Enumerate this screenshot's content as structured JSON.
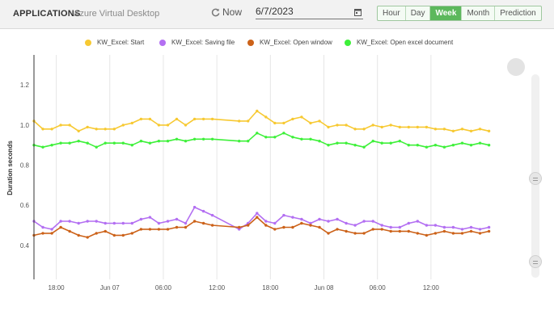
{
  "header": {
    "title": "APPLICATIONS",
    "subtitle": "Azure Virtual Desktop",
    "now_label": "Now",
    "date_value": "6/7/2023",
    "ranges": [
      "Hour",
      "Day",
      "Week",
      "Month",
      "Prediction"
    ],
    "active_range": "Week"
  },
  "colors": {
    "start": "#f7c932",
    "saving": "#b36ff2",
    "open_window": "#cc6219",
    "open_doc": "#3ef03a",
    "active_button": "#5cb85c"
  },
  "chart_data": {
    "type": "line",
    "ylabel": "Duration seconds",
    "ylim": [
      0.23,
      1.35
    ],
    "yticks": [
      0.4,
      0.6,
      0.8,
      1.0,
      1.2
    ],
    "xtick_labels": [
      "18:00",
      "Jun 07",
      "06:00",
      "12:00",
      "18:00",
      "Jun 08",
      "06:00",
      "12:00"
    ],
    "xlim": [
      15.5,
      70.8
    ],
    "xtick_hours": [
      18,
      24,
      30,
      36,
      42,
      48,
      54,
      60
    ],
    "grid": "vertical",
    "legend_position": "top",
    "series": [
      {
        "name": "KW_Excel: Start",
        "x": [
          15.5,
          16.5,
          17.5,
          18.5,
          19.5,
          20.5,
          21.5,
          22.5,
          23.5,
          24.5,
          25.5,
          26.5,
          27.5,
          28.5,
          29.5,
          30.5,
          31.5,
          32.5,
          33.5,
          34.5,
          35.5,
          38.5,
          39.5,
          40.5,
          41.5,
          42.5,
          43.5,
          44.5,
          45.5,
          46.5,
          47.5,
          48.5,
          49.5,
          50.5,
          51.5,
          52.5,
          53.5,
          54.5,
          55.5,
          56.5,
          57.5,
          58.5,
          59.5,
          60.5,
          61.5,
          62.5,
          63.5,
          64.5,
          65.5,
          66.5
        ],
        "y": [
          1.02,
          0.98,
          0.98,
          1.0,
          1.0,
          0.97,
          0.99,
          0.98,
          0.98,
          0.98,
          1.0,
          1.01,
          1.03,
          1.03,
          1.0,
          1.0,
          1.03,
          1.0,
          1.03,
          1.03,
          1.03,
          1.02,
          1.02,
          1.07,
          1.04,
          1.01,
          1.01,
          1.03,
          1.04,
          1.01,
          1.02,
          0.99,
          1.0,
          1.0,
          0.98,
          0.98,
          1.0,
          0.99,
          1.0,
          0.99,
          0.99,
          0.99,
          0.99,
          0.98,
          0.98,
          0.97,
          0.98,
          0.97,
          0.98,
          0.97
        ]
      },
      {
        "name": "KW_Excel: Saving file",
        "x": [
          15.5,
          16.5,
          17.5,
          18.5,
          19.5,
          20.5,
          21.5,
          22.5,
          23.5,
          24.5,
          25.5,
          26.5,
          27.5,
          28.5,
          29.5,
          30.5,
          31.5,
          32.5,
          33.5,
          34.5,
          35.5,
          38.5,
          39.5,
          40.5,
          41.5,
          42.5,
          43.5,
          44.5,
          45.5,
          46.5,
          47.5,
          48.5,
          49.5,
          50.5,
          51.5,
          52.5,
          53.5,
          54.5,
          55.5,
          56.5,
          57.5,
          58.5,
          59.5,
          60.5,
          61.5,
          62.5,
          63.5,
          64.5,
          65.5,
          66.5
        ],
        "y": [
          0.52,
          0.49,
          0.48,
          0.52,
          0.52,
          0.51,
          0.52,
          0.52,
          0.51,
          0.51,
          0.51,
          0.51,
          0.53,
          0.54,
          0.51,
          0.52,
          0.53,
          0.51,
          0.59,
          0.57,
          0.55,
          0.48,
          0.51,
          0.56,
          0.52,
          0.51,
          0.55,
          0.54,
          0.53,
          0.51,
          0.53,
          0.52,
          0.53,
          0.51,
          0.5,
          0.52,
          0.52,
          0.5,
          0.49,
          0.49,
          0.51,
          0.52,
          0.5,
          0.5,
          0.49,
          0.49,
          0.48,
          0.49,
          0.48,
          0.49
        ]
      },
      {
        "name": "KW_Excel: Open window",
        "x": [
          15.5,
          16.5,
          17.5,
          18.5,
          19.5,
          20.5,
          21.5,
          22.5,
          23.5,
          24.5,
          25.5,
          26.5,
          27.5,
          28.5,
          29.5,
          30.5,
          31.5,
          32.5,
          33.5,
          34.5,
          35.5,
          38.5,
          39.5,
          40.5,
          41.5,
          42.5,
          43.5,
          44.5,
          45.5,
          46.5,
          47.5,
          48.5,
          49.5,
          50.5,
          51.5,
          52.5,
          53.5,
          54.5,
          55.5,
          56.5,
          57.5,
          58.5,
          59.5,
          60.5,
          61.5,
          62.5,
          63.5,
          64.5,
          65.5,
          66.5
        ],
        "y": [
          0.45,
          0.46,
          0.46,
          0.49,
          0.47,
          0.45,
          0.44,
          0.46,
          0.47,
          0.45,
          0.45,
          0.46,
          0.48,
          0.48,
          0.48,
          0.48,
          0.49,
          0.49,
          0.52,
          0.51,
          0.5,
          0.49,
          0.5,
          0.54,
          0.5,
          0.48,
          0.49,
          0.49,
          0.51,
          0.5,
          0.49,
          0.46,
          0.48,
          0.47,
          0.46,
          0.46,
          0.48,
          0.48,
          0.47,
          0.47,
          0.47,
          0.46,
          0.45,
          0.46,
          0.47,
          0.46,
          0.46,
          0.47,
          0.46,
          0.47
        ]
      },
      {
        "name": "KW_Excel: Open excel document",
        "x": [
          15.5,
          16.5,
          17.5,
          18.5,
          19.5,
          20.5,
          21.5,
          22.5,
          23.5,
          24.5,
          25.5,
          26.5,
          27.5,
          28.5,
          29.5,
          30.5,
          31.5,
          32.5,
          33.5,
          34.5,
          35.5,
          38.5,
          39.5,
          40.5,
          41.5,
          42.5,
          43.5,
          44.5,
          45.5,
          46.5,
          47.5,
          48.5,
          49.5,
          50.5,
          51.5,
          52.5,
          53.5,
          54.5,
          55.5,
          56.5,
          57.5,
          58.5,
          59.5,
          60.5,
          61.5,
          62.5,
          63.5,
          64.5,
          65.5,
          66.5
        ],
        "y": [
          0.9,
          0.89,
          0.9,
          0.91,
          0.91,
          0.92,
          0.91,
          0.89,
          0.91,
          0.91,
          0.91,
          0.9,
          0.92,
          0.91,
          0.92,
          0.92,
          0.93,
          0.92,
          0.93,
          0.93,
          0.93,
          0.92,
          0.92,
          0.96,
          0.94,
          0.94,
          0.96,
          0.94,
          0.93,
          0.93,
          0.92,
          0.9,
          0.91,
          0.91,
          0.9,
          0.89,
          0.92,
          0.91,
          0.91,
          0.92,
          0.9,
          0.9,
          0.89,
          0.9,
          0.89,
          0.9,
          0.91,
          0.9,
          0.91,
          0.9
        ]
      }
    ]
  }
}
